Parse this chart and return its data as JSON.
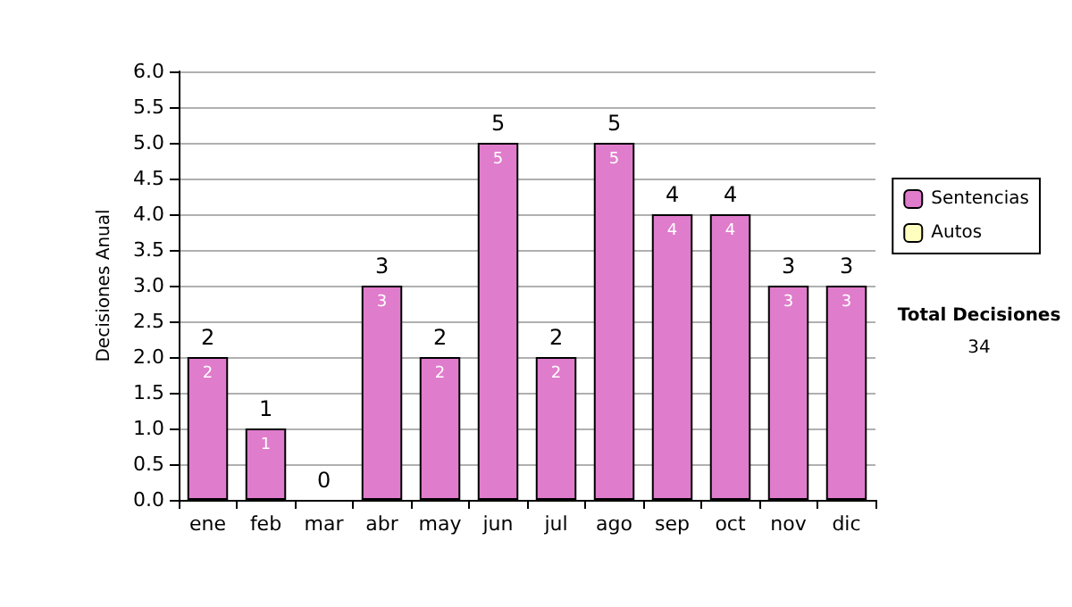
{
  "chart_data": {
    "type": "bar",
    "stacked": true,
    "ylabel": "Decisiones Anual",
    "categories": [
      "ene",
      "feb",
      "mar",
      "abr",
      "may",
      "jun",
      "jul",
      "ago",
      "sep",
      "oct",
      "nov",
      "dic"
    ],
    "series": [
      {
        "name": "Sentencias",
        "color": "#e07ccc",
        "values": [
          2,
          1,
          0,
          3,
          2,
          5,
          2,
          5,
          4,
          4,
          3,
          3
        ],
        "value_labels": [
          "2",
          "1",
          null,
          "3",
          "2",
          "5",
          "2",
          "5",
          "4",
          "4",
          "3",
          "3"
        ]
      },
      {
        "name": "Autos",
        "color": "#ffffc0",
        "values": [
          0,
          0,
          0,
          0,
          0,
          0,
          0,
          0,
          0,
          0,
          0,
          0
        ]
      }
    ],
    "totals": [
      "2",
      "1",
      "0",
      "3",
      "2",
      "5",
      "2",
      "5",
      "4",
      "4",
      "3",
      "3"
    ],
    "ylim": [
      0,
      6
    ],
    "yticks": [
      {
        "value": 0,
        "label": "0.0"
      },
      {
        "value": 0.5,
        "label": "0.5"
      },
      {
        "value": 1,
        "label": "1.0"
      },
      {
        "value": 1.5,
        "label": "1.5"
      },
      {
        "value": 2,
        "label": "2.0"
      },
      {
        "value": 2.5,
        "label": "2.5"
      },
      {
        "value": 3,
        "label": "3.0"
      },
      {
        "value": 3.5,
        "label": "3.5"
      },
      {
        "value": 4,
        "label": "4.0"
      },
      {
        "value": 4.5,
        "label": "4.5"
      },
      {
        "value": 5,
        "label": "5.0"
      },
      {
        "value": 5.5,
        "label": "5.5"
      },
      {
        "value": 6,
        "label": "6.0"
      }
    ],
    "grid": "y",
    "legend": "right",
    "annotations": [
      "Total Decisiones",
      "34"
    ]
  }
}
